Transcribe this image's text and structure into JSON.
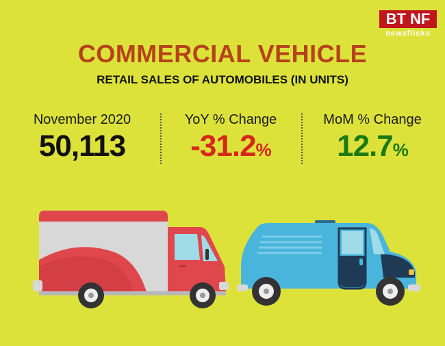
{
  "brand": {
    "logo_text": "BT NF",
    "logo_sub": "newsflicks"
  },
  "header": {
    "title": "COMMERCIAL VEHICLE",
    "subtitle": "RETAIL SALES OF AUTOMOBILES (IN UNITS)"
  },
  "stats": [
    {
      "label": "November 2020",
      "value": "50,113",
      "suffix": "",
      "color": "#111111"
    },
    {
      "label": "YoY % Change",
      "value": "-31.2",
      "suffix": "%",
      "color": "#d5281d"
    },
    {
      "label": "MoM % Change",
      "value": "12.7",
      "suffix": "%",
      "color": "#1b7a14"
    }
  ],
  "colors": {
    "background": "#dde23a",
    "title": "#b5431a",
    "truck_red": "#e0474c",
    "van_blue": "#4ab5dc"
  },
  "illustrations": [
    "delivery-truck-icon",
    "van-icon"
  ]
}
